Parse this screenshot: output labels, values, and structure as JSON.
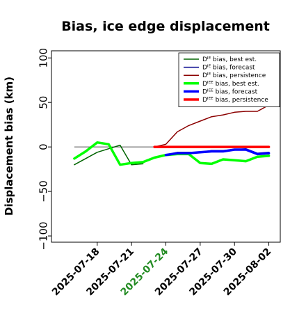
{
  "chart_data": {
    "type": "line",
    "title": "Bias, ice edge displacement",
    "xlabel": "",
    "ylabel": "Displacement bias (km)",
    "ylim": [
      -107,
      108
    ],
    "xlim": [
      "2025-07-14",
      "2025-08-03"
    ],
    "yticks": [
      "100",
      "50",
      "0",
      "−50",
      "−100"
    ],
    "ytick_values": [
      100,
      50,
      0,
      -50,
      -100
    ],
    "xticks": [
      {
        "label": "2025-07-18",
        "date": "2025-07-18",
        "color": "#000000"
      },
      {
        "label": "2025-07-21",
        "date": "2025-07-21",
        "color": "#000000"
      },
      {
        "label": "2025-07-24",
        "date": "2025-07-24",
        "color": "#228B22"
      },
      {
        "label": "2025-07-27",
        "date": "2025-07-27",
        "color": "#000000"
      },
      {
        "label": "2025-07-30",
        "date": "2025-07-30",
        "color": "#000000"
      },
      {
        "label": "2025-08-02",
        "date": "2025-08-02",
        "color": "#000000"
      }
    ],
    "zero_line": {
      "y": 0,
      "from": "2025-07-16",
      "to": "2025-08-02",
      "color": "#555555"
    },
    "legend_position": "upper-right",
    "series": [
      {
        "name": "Dᴵᴱ bias, best est.",
        "color": "#006400",
        "width": 1.5,
        "x": [
          "2025-07-16",
          "2025-07-17",
          "2025-07-18",
          "2025-07-19",
          "2025-07-20",
          "2025-07-21",
          "2025-07-22"
        ],
        "y": [
          -20,
          -13,
          -6,
          -2,
          2,
          -20,
          -19
        ]
      },
      {
        "name": "Dᴵᴱ bias, forecast",
        "color": "#00008B",
        "width": 1.5,
        "x": [
          "2025-07-24",
          "2025-07-25",
          "2025-07-26",
          "2025-07-27",
          "2025-07-28",
          "2025-07-29",
          "2025-07-30",
          "2025-07-31",
          "2025-08-01",
          "2025-08-02"
        ],
        "y": [
          -9,
          -6,
          -6,
          -6,
          -4,
          -4,
          -3,
          -2,
          -7,
          -6
        ]
      },
      {
        "name": "Dᴵᴱ bias, persistence",
        "color": "#8B0000",
        "width": 1.5,
        "x": [
          "2025-07-23",
          "2025-07-24",
          "2025-07-25",
          "2025-07-26",
          "2025-07-27",
          "2025-07-28",
          "2025-07-29",
          "2025-07-30",
          "2025-07-31",
          "2025-08-01",
          "2025-08-02"
        ],
        "y": [
          0,
          3,
          17,
          24,
          29,
          34,
          36,
          39,
          40,
          40,
          47
        ]
      },
      {
        "name": "Dᴵᴱᴱ bias, best est.",
        "color": "#00FF00",
        "width": 3.5,
        "x": [
          "2025-07-16",
          "2025-07-17",
          "2025-07-18",
          "2025-07-19",
          "2025-07-20",
          "2025-07-21",
          "2025-07-22",
          "2025-07-23",
          "2025-07-24",
          "2025-07-25",
          "2025-07-26",
          "2025-07-27",
          "2025-07-28",
          "2025-07-29",
          "2025-07-30",
          "2025-07-31",
          "2025-08-01",
          "2025-08-02"
        ],
        "y": [
          -13,
          -5,
          5,
          3,
          -20,
          -18,
          -17,
          -12,
          -9,
          -8,
          -8,
          -18,
          -19,
          -14,
          -15,
          -16,
          -11,
          -10
        ]
      },
      {
        "name": "Dᴵᴱᴱ bias, forecast",
        "color": "#0000FF",
        "width": 3.5,
        "x": [
          "2025-07-24",
          "2025-07-25",
          "2025-07-26",
          "2025-07-27",
          "2025-07-28",
          "2025-07-29",
          "2025-07-30",
          "2025-07-31",
          "2025-08-01",
          "2025-08-02"
        ],
        "y": [
          -9,
          -7,
          -7,
          -6,
          -5,
          -5,
          -3,
          -3,
          -8,
          -7
        ]
      },
      {
        "name": "Dᴵᴱᴱ bias, persistence",
        "color": "#FF0000",
        "width": 3.5,
        "x": [
          "2025-07-23",
          "2025-07-24",
          "2025-07-25",
          "2025-07-26",
          "2025-07-27",
          "2025-07-28",
          "2025-07-29",
          "2025-07-30",
          "2025-07-31",
          "2025-08-01",
          "2025-08-02"
        ],
        "y": [
          0,
          0,
          0,
          0,
          0,
          0,
          0,
          0,
          0,
          0,
          0
        ]
      }
    ]
  }
}
